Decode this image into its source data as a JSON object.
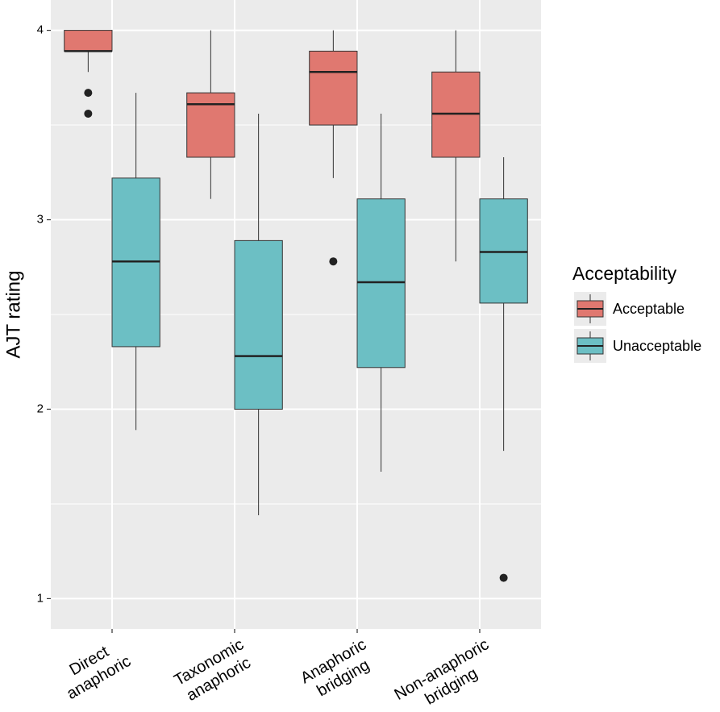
{
  "chart_data": {
    "type": "boxplot",
    "y_label": "AJT rating",
    "categories": [
      [
        "Direct",
        "anaphoric"
      ],
      [
        "Taxonomic",
        "anaphoric"
      ],
      [
        "Anaphoric",
        "bridging"
      ],
      [
        "Non-anaphoric",
        "bridging"
      ]
    ],
    "legend_title": "Acceptability",
    "legend_position": "right",
    "grid": true,
    "ylim": [
      0.84,
      4.16
    ],
    "yticks": [
      1,
      2,
      3,
      4
    ],
    "series": [
      {
        "name": "Acceptable",
        "color": "#e07870",
        "low": [
          3.78,
          3.11,
          3.22,
          2.78
        ],
        "q1": [
          3.89,
          3.33,
          3.5,
          3.33
        ],
        "median": [
          3.89,
          3.61,
          3.78,
          3.56
        ],
        "q3": [
          4.0,
          3.67,
          3.89,
          3.78
        ],
        "high": [
          4.0,
          4.0,
          4.0,
          4.0
        ],
        "outliers": [
          [
            3.67,
            3.56
          ],
          [],
          [
            2.78
          ],
          []
        ]
      },
      {
        "name": "Unacceptable",
        "color": "#6cbfc4",
        "low": [
          1.89,
          1.44,
          1.67,
          1.78
        ],
        "q1": [
          2.33,
          2.0,
          2.22,
          2.56
        ],
        "median": [
          2.78,
          2.28,
          2.67,
          2.83
        ],
        "q3": [
          3.22,
          2.89,
          3.11,
          3.11
        ],
        "high": [
          3.67,
          3.56,
          3.56,
          3.33
        ],
        "outliers": [
          [],
          [],
          [],
          [
            1.11
          ]
        ]
      }
    ]
  }
}
